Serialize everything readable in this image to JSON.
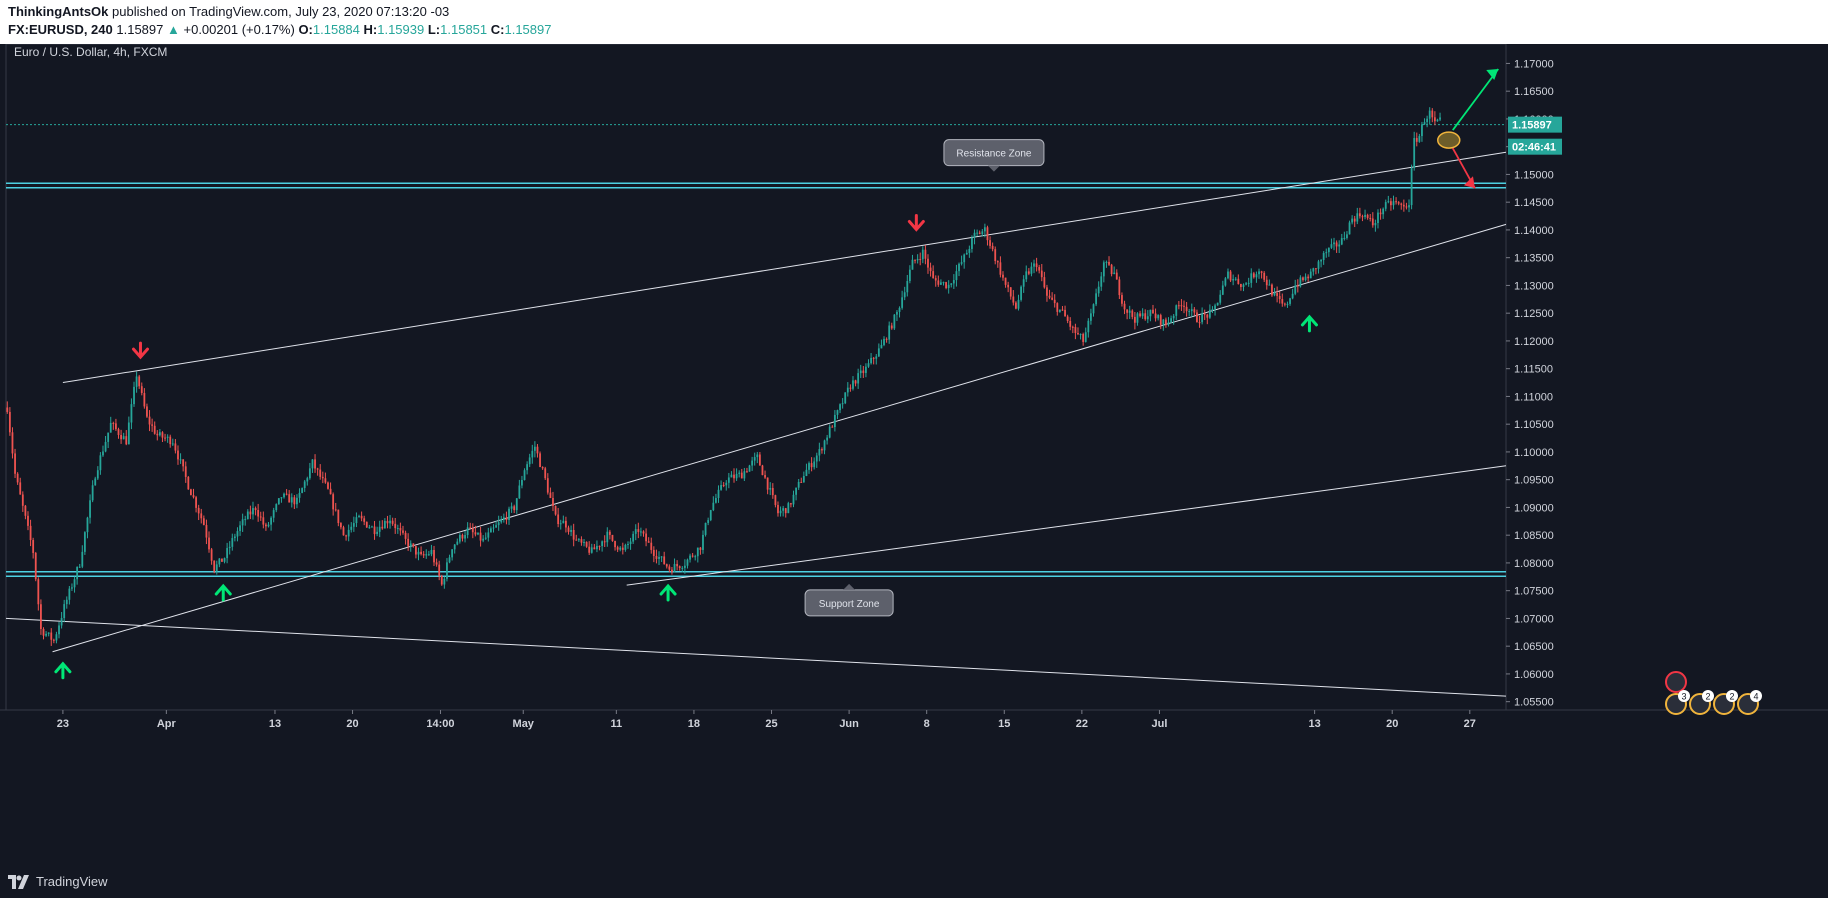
{
  "header": {
    "author": "ThinkingAntsOk",
    "published": "published on TradingView.com, July 23, 2020 07:13:20 -03",
    "symbol": "FX:EURUSD, 240",
    "last": "1.15897",
    "arrow": "▲",
    "change": "+0.00201 (+0.17%)",
    "o_label": "O:",
    "o": "1.15884",
    "h_label": "H:",
    "h": "1.15939",
    "l_label": "L:",
    "l": "1.15851",
    "c_label": "C:",
    "c": "1.15897"
  },
  "footer": {
    "brand": "TradingView"
  },
  "colors": {
    "up": "#26a69a",
    "down": "#ef5350",
    "bg": "#131722",
    "zone": "#4dd0e1",
    "text": "#d1d4dc"
  },
  "chart_data": {
    "type": "candlestick",
    "title": "Euro / U.S. Dollar, 4h, FXCM",
    "ylim": [
      1.0535,
      1.1735
    ],
    "y_ticks": [
      "1.17000",
      "1.16500",
      "1.16000",
      "1.15500",
      "1.15000",
      "1.14500",
      "1.14000",
      "1.13500",
      "1.13000",
      "1.12500",
      "1.12000",
      "1.11500",
      "1.11000",
      "1.10500",
      "1.10000",
      "1.09500",
      "1.09000",
      "1.08500",
      "1.08000",
      "1.07500",
      "1.07000",
      "1.06500",
      "1.06000",
      "1.05500"
    ],
    "x_ticks": [
      {
        "label": "23",
        "idx": 22
      },
      {
        "label": "Apr",
        "idx": 62
      },
      {
        "label": "13",
        "idx": 104
      },
      {
        "label": "20",
        "idx": 134
      },
      {
        "label": "14:00",
        "idx": 168
      },
      {
        "label": "May",
        "idx": 200
      },
      {
        "label": "11",
        "idx": 236
      },
      {
        "label": "18",
        "idx": 266
      },
      {
        "label": "25",
        "idx": 296
      },
      {
        "label": "Jun",
        "idx": 326
      },
      {
        "label": "8",
        "idx": 356
      },
      {
        "label": "15",
        "idx": 386
      },
      {
        "label": "22",
        "idx": 416
      },
      {
        "label": "Jul",
        "idx": 446
      },
      {
        "label": "13",
        "idx": 506
      },
      {
        "label": "20",
        "idx": 536
      },
      {
        "label": "27",
        "idx": 566
      }
    ],
    "x_count": 580,
    "price_path": [
      [
        0,
        1.108
      ],
      [
        3,
        1.096
      ],
      [
        10,
        1.082
      ],
      [
        13,
        1.068
      ],
      [
        18,
        1.066
      ],
      [
        22,
        1.072
      ],
      [
        28,
        1.08
      ],
      [
        34,
        1.096
      ],
      [
        40,
        1.105
      ],
      [
        46,
        1.102
      ],
      [
        50,
        1.114
      ],
      [
        54,
        1.106
      ],
      [
        58,
        1.103
      ],
      [
        64,
        1.102
      ],
      [
        70,
        1.094
      ],
      [
        76,
        1.087
      ],
      [
        80,
        1.079
      ],
      [
        84,
        1.081
      ],
      [
        88,
        1.085
      ],
      [
        92,
        1.088
      ],
      [
        96,
        1.09
      ],
      [
        100,
        1.086
      ],
      [
        106,
        1.092
      ],
      [
        112,
        1.091
      ],
      [
        118,
        1.098
      ],
      [
        124,
        1.093
      ],
      [
        130,
        1.085
      ],
      [
        136,
        1.088
      ],
      [
        142,
        1.086
      ],
      [
        148,
        1.088
      ],
      [
        154,
        1.084
      ],
      [
        160,
        1.081
      ],
      [
        164,
        1.082
      ],
      [
        168,
        1.076
      ],
      [
        172,
        1.083
      ],
      [
        178,
        1.086
      ],
      [
        184,
        1.084
      ],
      [
        190,
        1.087
      ],
      [
        196,
        1.09
      ],
      [
        200,
        1.097
      ],
      [
        204,
        1.101
      ],
      [
        208,
        1.095
      ],
      [
        212,
        1.088
      ],
      [
        216,
        1.087
      ],
      [
        220,
        1.084
      ],
      [
        226,
        1.082
      ],
      [
        232,
        1.085
      ],
      [
        238,
        1.082
      ],
      [
        244,
        1.086
      ],
      [
        250,
        1.082
      ],
      [
        256,
        1.079
      ],
      [
        262,
        1.08
      ],
      [
        268,
        1.083
      ],
      [
        272,
        1.09
      ],
      [
        278,
        1.095
      ],
      [
        284,
        1.096
      ],
      [
        290,
        1.099
      ],
      [
        294,
        1.094
      ],
      [
        298,
        1.089
      ],
      [
        302,
        1.09
      ],
      [
        308,
        1.096
      ],
      [
        314,
        1.1
      ],
      [
        320,
        1.106
      ],
      [
        326,
        1.112
      ],
      [
        332,
        1.115
      ],
      [
        338,
        1.119
      ],
      [
        344,
        1.125
      ],
      [
        350,
        1.134
      ],
      [
        354,
        1.136
      ],
      [
        358,
        1.131
      ],
      [
        364,
        1.13
      ],
      [
        370,
        1.135
      ],
      [
        374,
        1.139
      ],
      [
        378,
        1.14
      ],
      [
        382,
        1.135
      ],
      [
        386,
        1.13
      ],
      [
        390,
        1.126
      ],
      [
        394,
        1.132
      ],
      [
        398,
        1.134
      ],
      [
        402,
        1.128
      ],
      [
        408,
        1.125
      ],
      [
        412,
        1.122
      ],
      [
        416,
        1.12
      ],
      [
        420,
        1.126
      ],
      [
        424,
        1.134
      ],
      [
        428,
        1.132
      ],
      [
        432,
        1.126
      ],
      [
        436,
        1.124
      ],
      [
        442,
        1.125
      ],
      [
        448,
        1.123
      ],
      [
        454,
        1.127
      ],
      [
        460,
        1.124
      ],
      [
        466,
        1.125
      ],
      [
        472,
        1.132
      ],
      [
        478,
        1.13
      ],
      [
        484,
        1.133
      ],
      [
        490,
        1.128
      ],
      [
        494,
        1.126
      ],
      [
        498,
        1.13
      ],
      [
        504,
        1.132
      ],
      [
        510,
        1.136
      ],
      [
        516,
        1.138
      ],
      [
        520,
        1.142
      ],
      [
        524,
        1.143
      ],
      [
        528,
        1.141
      ],
      [
        532,
        1.144
      ],
      [
        536,
        1.145
      ],
      [
        540,
        1.144
      ],
      [
        542,
        1.145
      ],
      [
        544,
        1.156
      ],
      [
        546,
        1.157
      ],
      [
        548,
        1.16
      ],
      [
        550,
        1.161
      ],
      [
        552,
        1.159
      ],
      [
        554,
        1.1595
      ]
    ],
    "horizontal_lines": [
      {
        "name": "resistance-zone",
        "y": [
          1.1476,
          1.1484
        ]
      },
      {
        "name": "support-zone",
        "y": [
          1.0776,
          1.0784
        ]
      },
      {
        "name": "last-price",
        "y": [
          1.15897
        ]
      }
    ],
    "trendlines": [
      {
        "name": "upper-channel",
        "from": [
          22,
          1.1125
        ],
        "to": [
          580,
          1.154
        ]
      },
      {
        "name": "rising-support",
        "from": [
          18,
          1.064
        ],
        "to": [
          580,
          1.141
        ]
      },
      {
        "name": "lower-channel",
        "from": [
          0,
          1.07
        ],
        "to": [
          580,
          1.056
        ]
      },
      {
        "name": "mid-line",
        "from": [
          240,
          1.076
        ],
        "to": [
          580,
          1.0975
        ]
      }
    ],
    "annotations": [
      {
        "name": "resistance-label",
        "text": "Resistance Zone",
        "x": 382,
        "y": 1.1505
      },
      {
        "name": "support-label",
        "text": "Support Zone",
        "x": 326,
        "y": 1.0755
      }
    ],
    "markers": [
      {
        "name": "sell-arrow",
        "dir": "down",
        "x": 52,
        "y": 1.116
      },
      {
        "name": "buy-arrow",
        "dir": "up",
        "x": 22,
        "y": 1.064
      },
      {
        "name": "buy-arrow",
        "dir": "up",
        "x": 84,
        "y": 1.078
      },
      {
        "name": "buy-arrow",
        "dir": "up",
        "x": 256,
        "y": 1.078
      },
      {
        "name": "sell-arrow",
        "dir": "down",
        "x": 352,
        "y": 1.139
      },
      {
        "name": "buy-arrow",
        "dir": "up",
        "x": 504,
        "y": 1.1265
      }
    ],
    "price_tags": [
      {
        "name": "last-price-tag",
        "text": "1.15897",
        "y": 1.15897
      },
      {
        "name": "countdown-tag",
        "text": "02:46:41",
        "y": 1.1568
      }
    ],
    "event_badges": [
      "3",
      "2",
      "2",
      "4"
    ]
  }
}
